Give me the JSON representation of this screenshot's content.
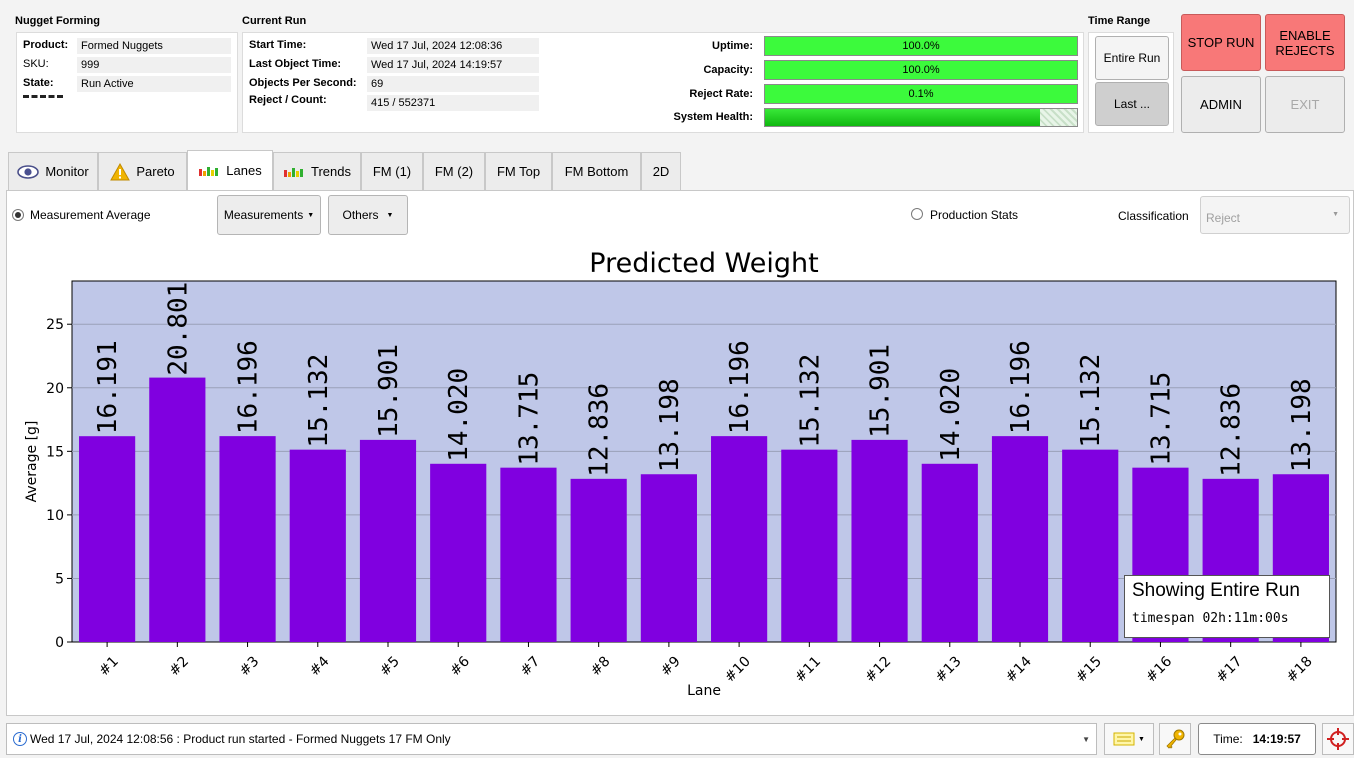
{
  "header": {
    "nugget_section_title": "Nugget Forming",
    "product_label": "Product:",
    "product_value": "Formed Nuggets",
    "sku_label": "SKU:",
    "sku_value": "999",
    "state_label": "State:",
    "state_value": "Run Active",
    "current_run_title": "Current Run",
    "start_time_label": "Start Time:",
    "start_time_value": "Wed 17 Jul, 2024 12:08:36",
    "last_object_label": "Last Object Time:",
    "last_object_value": "Wed 17 Jul, 2024 14:19:57",
    "ops_label": "Objects Per Second:",
    "ops_value": "69",
    "reject_count_label": "Reject / Count:",
    "reject_count_value": "415 / 552371",
    "uptime_label": "Uptime:",
    "uptime_value": "100.0%",
    "capacity_label": "Capacity:",
    "capacity_value": "100.0%",
    "reject_rate_label": "Reject Rate:",
    "reject_rate_value": "0.1%",
    "system_health_label": "System Health:",
    "system_health_level": 0.88,
    "time_range_title": "Time Range",
    "entire_run_label": "Entire Run",
    "last_label": "Last ...",
    "stop_run_label": "STOP RUN",
    "enable_rejects_label": "ENABLE REJECTS",
    "admin_label": "ADMIN",
    "exit_label": "EXIT"
  },
  "tabs": [
    {
      "label": "Monitor"
    },
    {
      "label": "Pareto"
    },
    {
      "label": "Lanes"
    },
    {
      "label": "Trends"
    },
    {
      "label": "FM (1)"
    },
    {
      "label": "FM (2)"
    },
    {
      "label": "FM Top"
    },
    {
      "label": "FM Bottom"
    },
    {
      "label": "2D"
    }
  ],
  "controls": {
    "measurement_average_label": "Measurement Average",
    "measurements_dropdown": "Measurements",
    "others_dropdown": "Others",
    "production_stats_label": "Production Stats",
    "classification_label": "Classification",
    "classification_value": "Reject"
  },
  "overlay": {
    "title": "Showing Entire Run",
    "timespan": "timespan 02h:11m:00s"
  },
  "chart_data": {
    "type": "bar",
    "title": "Predicted Weight",
    "xlabel": "Lane",
    "ylabel": "Average [g]",
    "ylim": [
      0,
      28.4
    ],
    "yticks": [
      0,
      5,
      10,
      15,
      20,
      25
    ],
    "grid": true,
    "categories": [
      "#1",
      "#2",
      "#3",
      "#4",
      "#5",
      "#6",
      "#7",
      "#8",
      "#9",
      "#10",
      "#11",
      "#12",
      "#13",
      "#14",
      "#15",
      "#16",
      "#17",
      "#18"
    ],
    "values": [
      16.191,
      20.801,
      16.196,
      15.132,
      15.901,
      14.02,
      13.715,
      12.836,
      13.198,
      16.196,
      15.132,
      15.901,
      14.02,
      16.196,
      15.132,
      13.715,
      12.836,
      13.198
    ],
    "value_labels": [
      "16.191",
      "20.801",
      "16.196",
      "15.132",
      "15.901",
      "14.020",
      "13.715",
      "12.836",
      "13.198",
      "16.196",
      "15.132",
      "15.901",
      "14.020",
      "16.196",
      "15.132",
      "13.715",
      "12.836",
      "13.198"
    ],
    "bar_color": "#8000e0",
    "background_color": "#bfc7e8"
  },
  "statusbar": {
    "message": "Wed 17 Jul, 2024 12:08:56 : Product run started - Formed Nuggets 17 FM Only",
    "time_label": "Time:",
    "time_value": "14:19:57"
  },
  "colors": {
    "gauge_green": "#3cfa3c",
    "stop_red": "#f87878",
    "bar_purple": "#8000e0"
  }
}
